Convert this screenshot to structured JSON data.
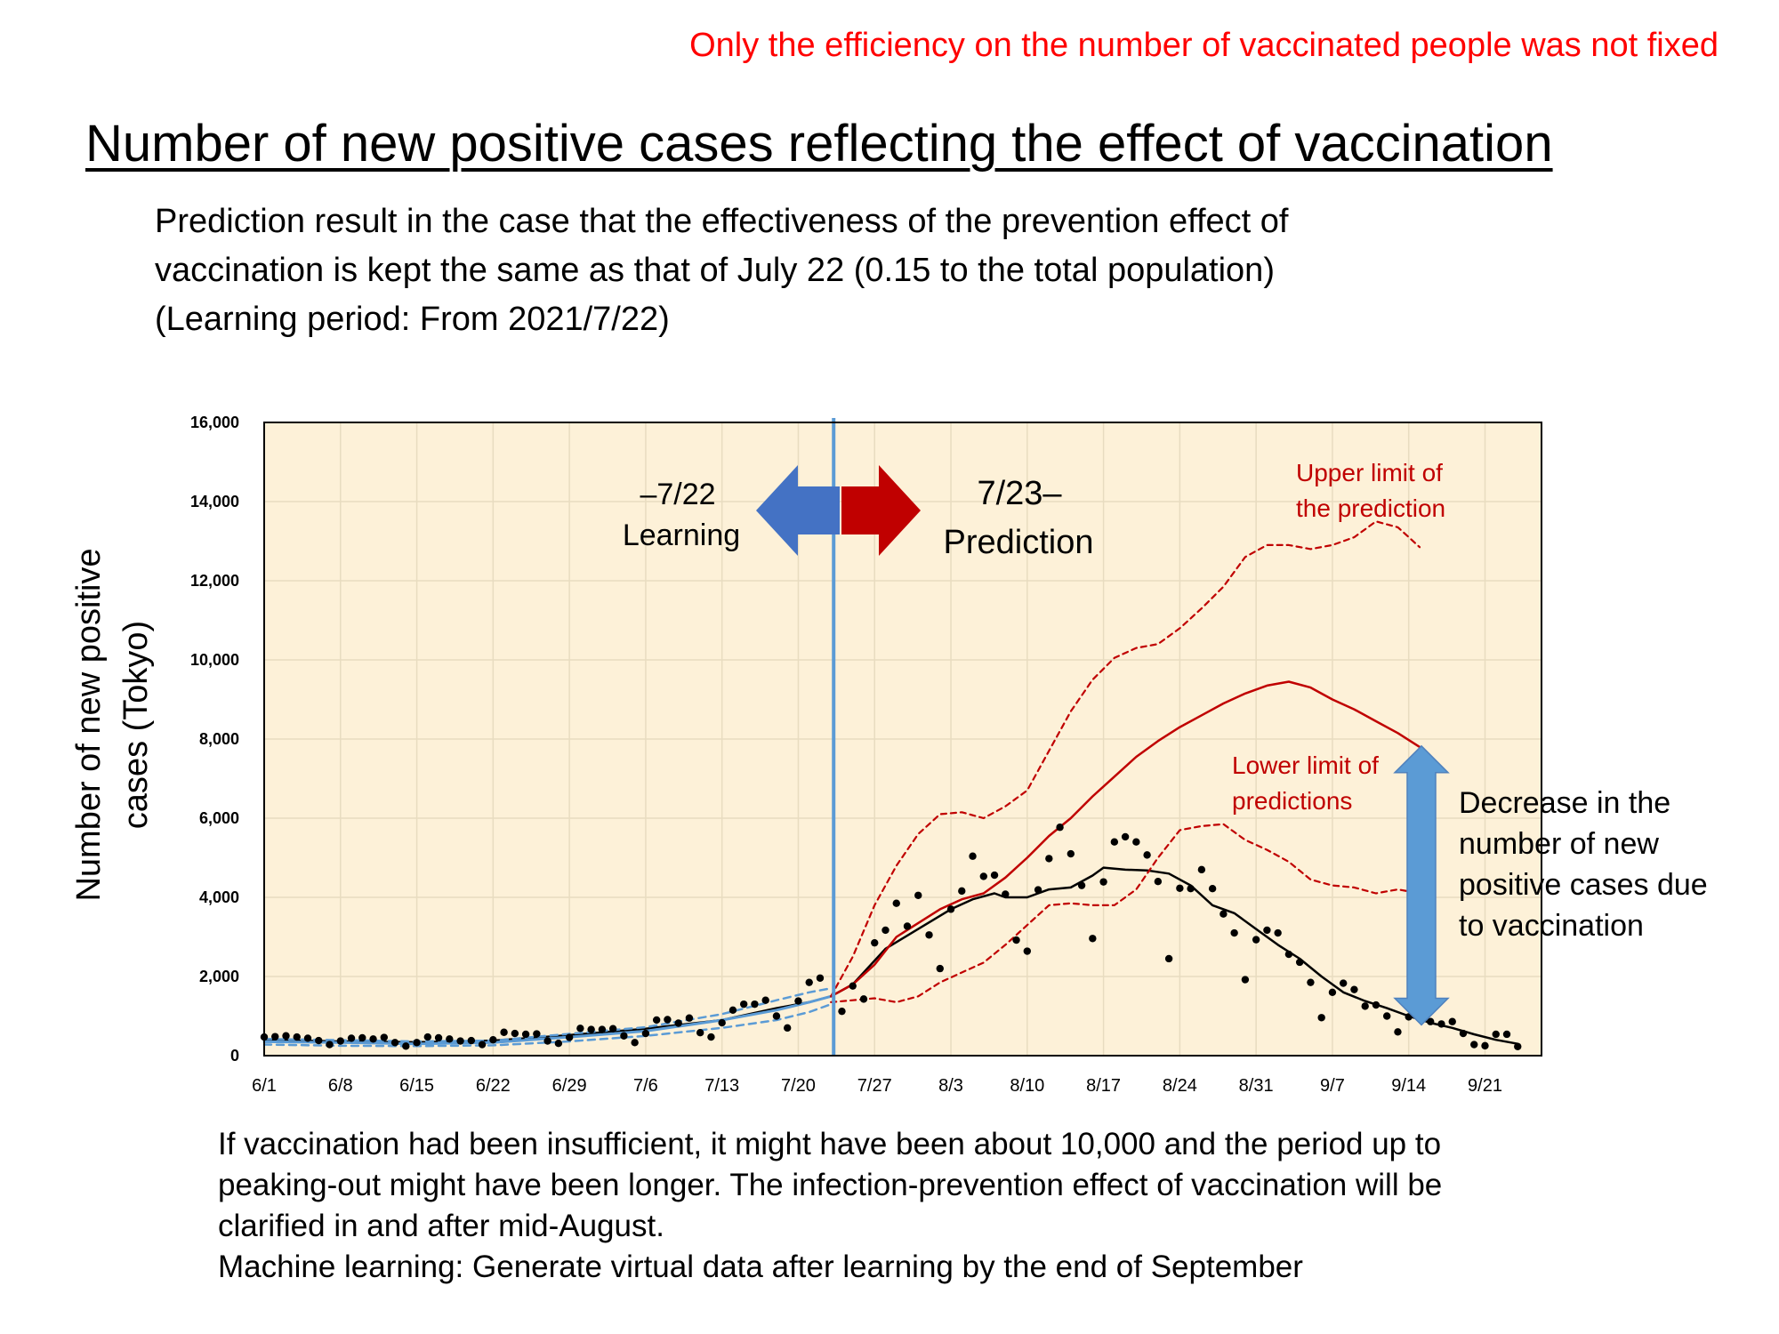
{
  "note": "Only the efficiency on the number of vaccinated people was not fixed",
  "title": "Number of new positive cases reflecting the effect of vaccination",
  "subtitle_lines": [
    "Prediction result in the case that the effectiveness of the prevention effect of",
    "vaccination is kept the same as that of July 22 (0.15 to the total population)",
    "(Learning period: From 2021/7/22)"
  ],
  "caption_lines": [
    "If vaccination had been insufficient, it might have been about 10,000 and the period up to",
    "peaking-out might have been longer. The infection-prevention effect of vaccination will be",
    "clarified in and after mid-August.",
    "Machine learning: Generate virtual data after learning by the end of September"
  ],
  "chart_data": {
    "type": "line",
    "ylabel_lines": [
      "Number of new positive",
      "cases (Tokyo)"
    ],
    "xlabel": "",
    "ylim": [
      0,
      16000
    ],
    "yticks": [
      0,
      2000,
      4000,
      6000,
      8000,
      10000,
      12000,
      14000,
      16000
    ],
    "ytick_labels": [
      "0",
      "2,000",
      "4,000",
      "6,000",
      "8,000",
      "10,000",
      "12,000",
      "14,000",
      "16,000"
    ],
    "x_day_range": [
      0,
      114
    ],
    "xticks": [
      0,
      7,
      14,
      21,
      28,
      35,
      42,
      49,
      56,
      63,
      70,
      77,
      84,
      91,
      98,
      105,
      112
    ],
    "xtick_labels": [
      "6/1",
      "6/8",
      "6/15",
      "6/22",
      "6/29",
      "7/6",
      "7/13",
      "7/20",
      "7/27",
      "8/3",
      "8/10",
      "8/17",
      "8/24",
      "8/31",
      "9/7",
      "9/14",
      "9/21"
    ],
    "split_day": 52,
    "grid": true,
    "colors": {
      "plot_bg": "#fdf1d8",
      "grid": "#e8dcc0",
      "split_line": "#5b9bd5",
      "learning_band": "#5b9bd5",
      "prediction": "#c00000",
      "observed": "#000000",
      "left_arrow": "#4472c4",
      "right_arrow": "#c00000",
      "decrease_arrow": "#5b9bd5"
    },
    "annotations": {
      "learning_lines": [
        "–7/22",
        "Learning"
      ],
      "prediction_lines": [
        "7/23–",
        "Prediction"
      ],
      "upper_lines": [
        "Upper limit of",
        "the prediction"
      ],
      "lower_lines": [
        "Lower limit of",
        "predictions"
      ],
      "decrease_lines": [
        "Decrease in the",
        "number of new",
        "positive cases due",
        "to vaccination"
      ]
    },
    "decrease_arrow_range": [
      1000,
      7600
    ],
    "series": [
      {
        "role": "observed_points",
        "kind": "scatter",
        "points": [
          [
            0,
            470
          ],
          [
            1,
            480
          ],
          [
            2,
            500
          ],
          [
            3,
            470
          ],
          [
            4,
            440
          ],
          [
            5,
            380
          ],
          [
            6,
            280
          ],
          [
            7,
            370
          ],
          [
            8,
            440
          ],
          [
            9,
            450
          ],
          [
            10,
            420
          ],
          [
            11,
            460
          ],
          [
            12,
            330
          ],
          [
            13,
            240
          ],
          [
            14,
            330
          ],
          [
            15,
            470
          ],
          [
            16,
            450
          ],
          [
            17,
            420
          ],
          [
            18,
            370
          ],
          [
            19,
            380
          ],
          [
            20,
            280
          ],
          [
            21,
            400
          ],
          [
            22,
            590
          ],
          [
            23,
            560
          ],
          [
            24,
            540
          ],
          [
            25,
            550
          ],
          [
            26,
            370
          ],
          [
            27,
            310
          ],
          [
            28,
            460
          ],
          [
            29,
            690
          ],
          [
            30,
            660
          ],
          [
            31,
            660
          ],
          [
            32,
            680
          ],
          [
            33,
            500
          ],
          [
            34,
            330
          ],
          [
            35,
            560
          ],
          [
            36,
            900
          ],
          [
            37,
            910
          ],
          [
            38,
            820
          ],
          [
            39,
            950
          ],
          [
            40,
            580
          ],
          [
            41,
            470
          ],
          [
            42,
            830
          ],
          [
            43,
            1150
          ],
          [
            44,
            1300
          ],
          [
            45,
            1300
          ],
          [
            46,
            1400
          ],
          [
            47,
            1000
          ],
          [
            48,
            700
          ],
          [
            49,
            1380
          ],
          [
            50,
            1850
          ],
          [
            51,
            1960
          ],
          [
            53,
            1120
          ],
          [
            54,
            1760
          ],
          [
            55,
            1430
          ],
          [
            56,
            2850
          ],
          [
            57,
            3170
          ],
          [
            58,
            3850
          ],
          [
            59,
            3270
          ],
          [
            60,
            4050
          ],
          [
            61,
            3050
          ],
          [
            62,
            2200
          ],
          [
            63,
            3700
          ],
          [
            64,
            4160
          ],
          [
            65,
            5040
          ],
          [
            66,
            4530
          ],
          [
            67,
            4560
          ],
          [
            68,
            4080
          ],
          [
            69,
            2920
          ],
          [
            70,
            2640
          ],
          [
            71,
            4190
          ],
          [
            72,
            4980
          ],
          [
            73,
            5770
          ],
          [
            74,
            5100
          ],
          [
            75,
            4300
          ],
          [
            76,
            2960
          ],
          [
            77,
            4390
          ],
          [
            78,
            5400
          ],
          [
            79,
            5530
          ],
          [
            80,
            5400
          ],
          [
            81,
            5070
          ],
          [
            82,
            4400
          ],
          [
            83,
            2450
          ],
          [
            84,
            4230
          ],
          [
            85,
            4220
          ],
          [
            86,
            4700
          ],
          [
            87,
            4220
          ],
          [
            88,
            3580
          ],
          [
            89,
            3100
          ],
          [
            90,
            1920
          ],
          [
            91,
            2930
          ],
          [
            92,
            3170
          ],
          [
            93,
            3100
          ],
          [
            94,
            2560
          ],
          [
            95,
            2360
          ],
          [
            96,
            1850
          ],
          [
            97,
            960
          ],
          [
            98,
            1600
          ],
          [
            99,
            1830
          ],
          [
            100,
            1670
          ],
          [
            101,
            1250
          ],
          [
            102,
            1280
          ],
          [
            103,
            1000
          ],
          [
            104,
            600
          ],
          [
            105,
            980
          ],
          [
            106,
            1050
          ],
          [
            107,
            860
          ],
          [
            108,
            800
          ],
          [
            109,
            860
          ],
          [
            110,
            560
          ],
          [
            111,
            280
          ],
          [
            112,
            250
          ],
          [
            113,
            540
          ],
          [
            114,
            540
          ],
          [
            115,
            230
          ]
        ]
      },
      {
        "role": "observed_trend",
        "kind": "line",
        "points": [
          [
            0,
            400
          ],
          [
            7,
            360
          ],
          [
            14,
            340
          ],
          [
            21,
            380
          ],
          [
            28,
            520
          ],
          [
            35,
            680
          ],
          [
            42,
            900
          ],
          [
            47,
            1200
          ],
          [
            50,
            1350
          ],
          [
            52,
            1500
          ],
          [
            54,
            1800
          ],
          [
            57,
            2700
          ],
          [
            60,
            3200
          ],
          [
            63,
            3700
          ],
          [
            65,
            3950
          ],
          [
            67,
            4100
          ],
          [
            68,
            4000
          ],
          [
            70,
            4000
          ],
          [
            72,
            4200
          ],
          [
            74,
            4250
          ],
          [
            76,
            4550
          ],
          [
            77,
            4750
          ],
          [
            79,
            4700
          ],
          [
            81,
            4680
          ],
          [
            83,
            4600
          ],
          [
            85,
            4300
          ],
          [
            87,
            3800
          ],
          [
            89,
            3600
          ],
          [
            91,
            3200
          ],
          [
            93,
            2800
          ],
          [
            95,
            2450
          ],
          [
            97,
            2000
          ],
          [
            99,
            1600
          ],
          [
            101,
            1380
          ],
          [
            103,
            1200
          ],
          [
            105,
            1000
          ],
          [
            107,
            830
          ],
          [
            109,
            700
          ],
          [
            111,
            540
          ],
          [
            113,
            400
          ],
          [
            115,
            300
          ]
        ]
      },
      {
        "role": "learning_fit_upper",
        "kind": "line",
        "dashed": true,
        "points": [
          [
            0,
            420
          ],
          [
            7,
            390
          ],
          [
            14,
            360
          ],
          [
            21,
            380
          ],
          [
            28,
            550
          ],
          [
            35,
            720
          ],
          [
            42,
            1050
          ],
          [
            47,
            1400
          ],
          [
            50,
            1600
          ],
          [
            52,
            1700
          ]
        ]
      },
      {
        "role": "learning_fit",
        "kind": "line",
        "points": [
          [
            0,
            350
          ],
          [
            7,
            330
          ],
          [
            14,
            300
          ],
          [
            21,
            330
          ],
          [
            28,
            470
          ],
          [
            35,
            620
          ],
          [
            42,
            900
          ],
          [
            47,
            1150
          ],
          [
            50,
            1350
          ],
          [
            52,
            1500
          ]
        ]
      },
      {
        "role": "learning_fit_lower",
        "kind": "line",
        "dashed": true,
        "points": [
          [
            0,
            280
          ],
          [
            7,
            250
          ],
          [
            14,
            240
          ],
          [
            21,
            260
          ],
          [
            28,
            360
          ],
          [
            35,
            500
          ],
          [
            42,
            700
          ],
          [
            47,
            900
          ],
          [
            50,
            1100
          ],
          [
            52,
            1300
          ]
        ]
      },
      {
        "role": "prediction",
        "kind": "line",
        "points": [
          [
            52,
            1500
          ],
          [
            54,
            1800
          ],
          [
            56,
            2300
          ],
          [
            58,
            3000
          ],
          [
            60,
            3350
          ],
          [
            62,
            3700
          ],
          [
            64,
            3950
          ],
          [
            66,
            4100
          ],
          [
            68,
            4500
          ],
          [
            70,
            5000
          ],
          [
            72,
            5550
          ],
          [
            74,
            6000
          ],
          [
            76,
            6550
          ],
          [
            78,
            7050
          ],
          [
            80,
            7550
          ],
          [
            82,
            7950
          ],
          [
            84,
            8300
          ],
          [
            86,
            8600
          ],
          [
            88,
            8900
          ],
          [
            90,
            9150
          ],
          [
            92,
            9350
          ],
          [
            94,
            9450
          ],
          [
            96,
            9300
          ],
          [
            98,
            9000
          ],
          [
            100,
            8750
          ],
          [
            102,
            8450
          ],
          [
            104,
            8150
          ],
          [
            106,
            7800
          ]
        ]
      },
      {
        "role": "prediction_upper",
        "kind": "line",
        "dashed": true,
        "points": [
          [
            52,
            1500
          ],
          [
            54,
            2500
          ],
          [
            56,
            3800
          ],
          [
            58,
            4800
          ],
          [
            60,
            5600
          ],
          [
            62,
            6100
          ],
          [
            64,
            6150
          ],
          [
            66,
            6000
          ],
          [
            68,
            6300
          ],
          [
            70,
            6700
          ],
          [
            72,
            7700
          ],
          [
            74,
            8700
          ],
          [
            76,
            9500
          ],
          [
            78,
            10050
          ],
          [
            80,
            10300
          ],
          [
            82,
            10400
          ],
          [
            84,
            10800
          ],
          [
            86,
            11300
          ],
          [
            88,
            11850
          ],
          [
            90,
            12600
          ],
          [
            92,
            12900
          ],
          [
            94,
            12900
          ],
          [
            96,
            12800
          ],
          [
            98,
            12900
          ],
          [
            100,
            13100
          ],
          [
            102,
            13500
          ],
          [
            104,
            13350
          ],
          [
            106,
            12850
          ]
        ]
      },
      {
        "role": "prediction_lower",
        "kind": "line",
        "dashed": true,
        "points": [
          [
            52,
            1350
          ],
          [
            54,
            1400
          ],
          [
            56,
            1450
          ],
          [
            58,
            1350
          ],
          [
            60,
            1500
          ],
          [
            62,
            1850
          ],
          [
            64,
            2100
          ],
          [
            66,
            2350
          ],
          [
            68,
            2800
          ],
          [
            70,
            3300
          ],
          [
            72,
            3800
          ],
          [
            74,
            3850
          ],
          [
            76,
            3800
          ],
          [
            78,
            3800
          ],
          [
            80,
            4200
          ],
          [
            82,
            5000
          ],
          [
            84,
            5700
          ],
          [
            86,
            5800
          ],
          [
            88,
            5850
          ],
          [
            90,
            5450
          ],
          [
            92,
            5200
          ],
          [
            94,
            4900
          ],
          [
            96,
            4450
          ],
          [
            98,
            4300
          ],
          [
            100,
            4250
          ],
          [
            102,
            4100
          ],
          [
            104,
            4200
          ],
          [
            106,
            4100
          ]
        ]
      }
    ]
  }
}
